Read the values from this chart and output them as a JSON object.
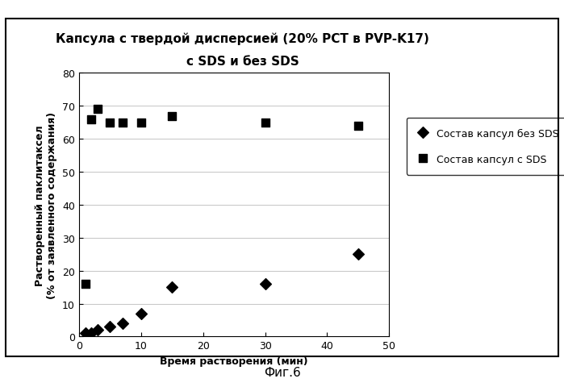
{
  "title_line1": "Капсула с твердой дисперсией (20% РСТ в PVP-K17)",
  "title_line2": "с SDS и без SDS",
  "xlabel": "Время растворения (мин)",
  "ylabel": "Растворенный паклитаксел\n(% от заявленного содержания)",
  "xlim": [
    0,
    50
  ],
  "ylim": [
    0,
    80
  ],
  "xticks": [
    0,
    10,
    20,
    30,
    40,
    50
  ],
  "yticks": [
    0,
    10,
    20,
    30,
    40,
    50,
    60,
    70,
    80
  ],
  "series_no_sds": {
    "label": "Состав капсул без SDS",
    "x": [
      1,
      2,
      3,
      5,
      7,
      10,
      15,
      30,
      45
    ],
    "y": [
      1,
      1,
      2,
      3,
      4,
      7,
      15,
      16,
      25
    ],
    "marker": "D",
    "color": "#000000",
    "markersize": 7
  },
  "series_sds": {
    "label": "Состав капсул с SDS",
    "x": [
      1,
      2,
      3,
      5,
      7,
      10,
      15,
      30,
      45
    ],
    "y": [
      16,
      66,
      69,
      65,
      65,
      65,
      67,
      65,
      64
    ],
    "marker": "s",
    "color": "#000000",
    "markersize": 7
  },
  "background_color": "#ffffff",
  "caption": "Фиг.6",
  "title_fontsize": 11,
  "label_fontsize": 9,
  "tick_fontsize": 9,
  "legend_fontsize": 9,
  "caption_fontsize": 11
}
